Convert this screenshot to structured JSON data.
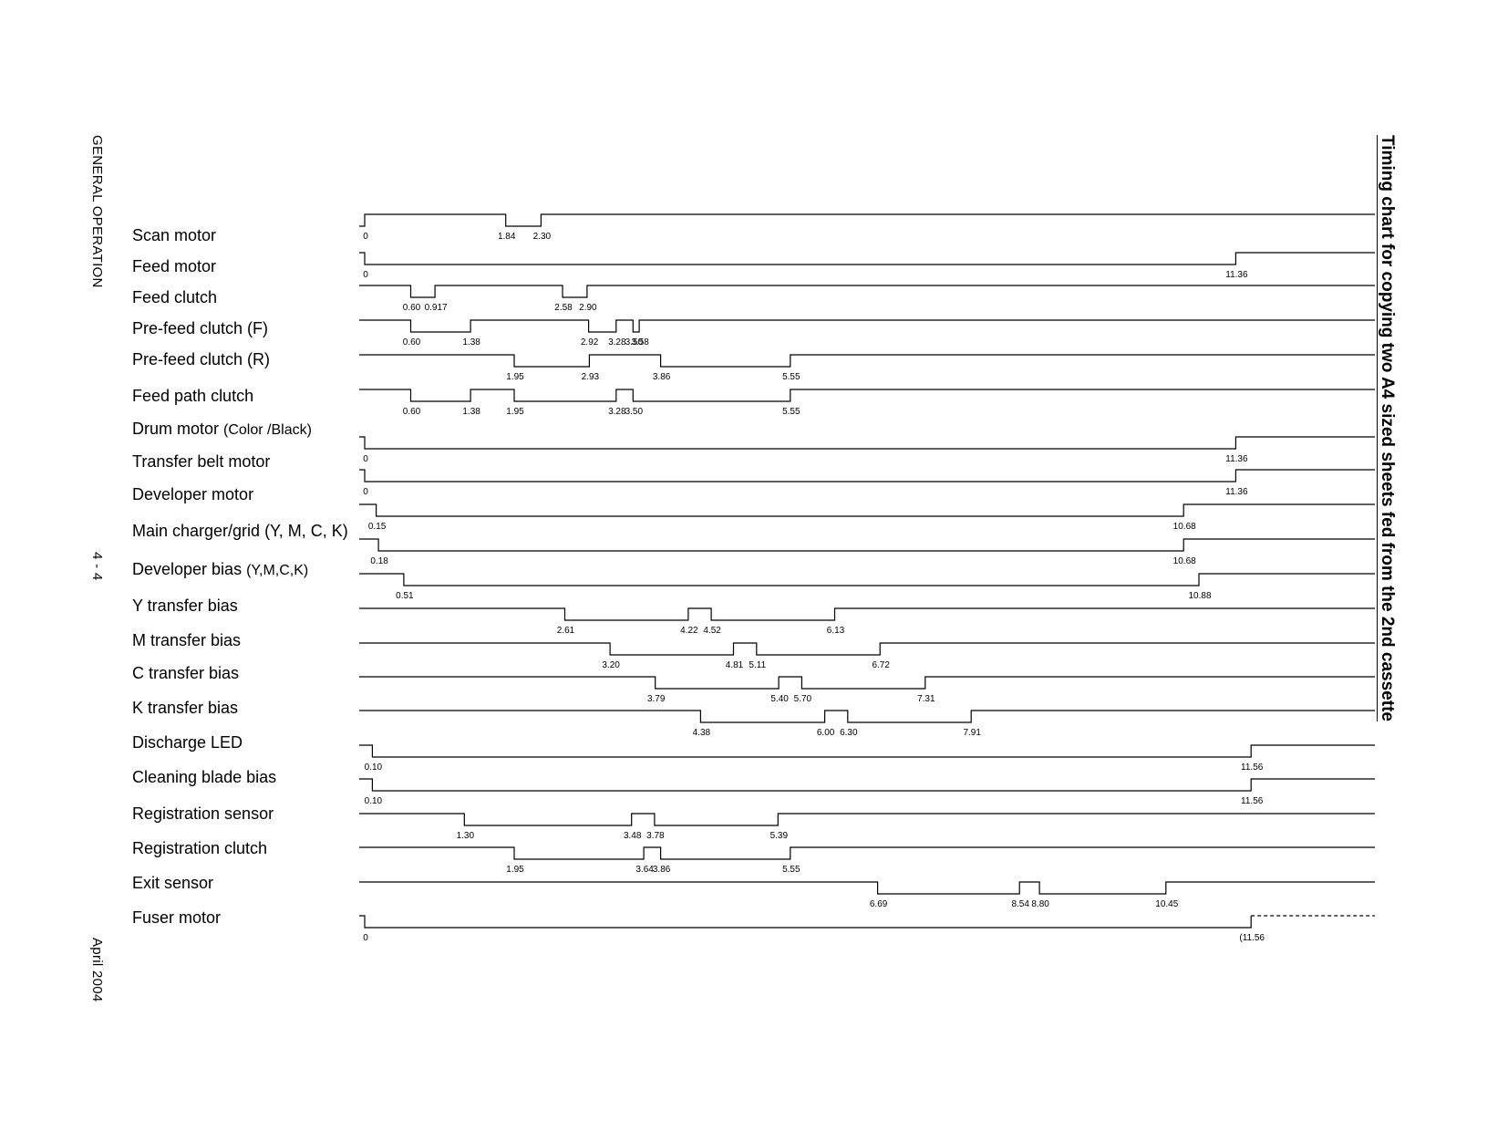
{
  "header": {
    "section": "GENERAL OPERATION",
    "page": "4 - 4",
    "date": "April 2004",
    "title": "Timing chart for copying two A4 sized sheets fed from the 2nd cassette"
  },
  "signals": [
    {
      "label": "Scan motor",
      "sub": "",
      "initial": "low",
      "transitions": [
        0,
        1.84,
        2.3
      ],
      "ticks": [
        "0",
        "1.84",
        "2.30"
      ]
    },
    {
      "label": "Feed motor",
      "sub": "",
      "initial": "high",
      "transitions": [
        0,
        11.36
      ],
      "ticks": [
        "0",
        "11.36"
      ]
    },
    {
      "label": "Feed clutch",
      "sub": "",
      "initial": "high",
      "transitions": [
        0.6,
        0.917,
        2.58,
        2.9
      ],
      "ticks": [
        "0.60",
        "0.917",
        "2.58",
        "2.90"
      ]
    },
    {
      "label": "Pre-feed clutch (F)",
      "sub": "",
      "initial": "high",
      "transitions": [
        0.6,
        1.38,
        2.92,
        3.28,
        3.5,
        3.58
      ],
      "ticks": [
        "0.60",
        "1.38",
        "2.92",
        "3.28",
        "3.50",
        "3.58"
      ]
    },
    {
      "label": "Pre-feed clutch (R)",
      "sub": "",
      "initial": "high",
      "transitions": [
        1.95,
        2.93,
        3.86,
        5.55
      ],
      "ticks": [
        "1.95",
        "2.93",
        "3.86",
        "5.55"
      ]
    },
    {
      "label": "Feed path clutch",
      "sub": "",
      "initial": "high",
      "transitions": [
        0.6,
        1.38,
        1.95,
        3.28,
        3.5,
        5.55
      ],
      "ticks": [
        "0.60",
        "1.38",
        "1.95",
        "3.28",
        "3.50",
        "5.55"
      ]
    },
    {
      "label": "Drum motor ",
      "sub": "(Color /Black)",
      "initial": "high",
      "transitions": [
        0,
        11.36
      ],
      "ticks": [
        "0",
        "11.36"
      ]
    },
    {
      "label": "Transfer belt motor",
      "sub": "",
      "initial": "high",
      "transitions": [
        0,
        11.36
      ],
      "ticks": [
        "0",
        "11.36"
      ]
    },
    {
      "label": "Developer motor",
      "sub": "",
      "initial": "high",
      "transitions": [
        0.15,
        10.68
      ],
      "ticks": [
        "0.15",
        "10.68"
      ]
    },
    {
      "label": "Main charger/grid (Y, M, C, K)",
      "sub": "",
      "initial": "high",
      "transitions": [
        0.18,
        10.68
      ],
      "ticks": [
        "0.18",
        "10.68"
      ]
    },
    {
      "label": "Developer bias ",
      "sub": "(Y,M,C,K)",
      "initial": "high",
      "transitions": [
        0.51,
        10.88
      ],
      "ticks": [
        "0.51",
        "10.88"
      ]
    },
    {
      "label": "Y transfer bias",
      "sub": "",
      "initial": "high",
      "transitions": [
        2.61,
        4.22,
        4.52,
        6.13
      ],
      "ticks": [
        "2.61",
        "4.22",
        "4.52",
        "6.13"
      ]
    },
    {
      "label": "M transfer bias",
      "sub": "",
      "initial": "high",
      "transitions": [
        3.2,
        4.81,
        5.11,
        6.72
      ],
      "ticks": [
        "3.20",
        "4.81",
        "5.11",
        "6.72"
      ]
    },
    {
      "label": "C transfer bias",
      "sub": "",
      "initial": "high",
      "transitions": [
        3.79,
        5.4,
        5.7,
        7.31
      ],
      "ticks": [
        "3.79",
        "5.40",
        "5.70",
        "7.31"
      ]
    },
    {
      "label": "K transfer bias",
      "sub": "",
      "initial": "high",
      "transitions": [
        4.38,
        6.0,
        6.3,
        7.91
      ],
      "ticks": [
        "4.38",
        "6.00",
        "6.30",
        "7.91"
      ]
    },
    {
      "label": "Discharge LED",
      "sub": "",
      "initial": "high",
      "transitions": [
        0.1,
        11.56
      ],
      "ticks": [
        "0.10",
        "11.56"
      ]
    },
    {
      "label": "Cleaning blade bias",
      "sub": "",
      "initial": "high",
      "transitions": [
        0.1,
        11.56
      ],
      "ticks": [
        "0.10",
        "11.56"
      ]
    },
    {
      "label": "Registration sensor",
      "sub": "",
      "initial": "high",
      "transitions": [
        1.3,
        3.48,
        3.78,
        5.39
      ],
      "ticks": [
        "1.30",
        "3.48",
        "3.78",
        "5.39"
      ]
    },
    {
      "label": "Registration clutch",
      "sub": "",
      "initial": "high",
      "transitions": [
        1.95,
        3.64,
        3.86,
        5.55
      ],
      "ticks": [
        "1.95",
        "3.64",
        "3.86",
        "5.55"
      ]
    },
    {
      "label": "Exit sensor",
      "sub": "",
      "initial": "high",
      "transitions": [
        6.69,
        8.54,
        8.8,
        10.45
      ],
      "ticks": [
        "6.69",
        "8.54",
        "8.80",
        "10.45"
      ]
    },
    {
      "label": "Fuser motor",
      "sub": "",
      "initial": "high",
      "transitions": [
        0,
        11.56
      ],
      "ticks": [
        "0",
        "(11.56"
      ],
      "dashed_after": true
    }
  ]
}
